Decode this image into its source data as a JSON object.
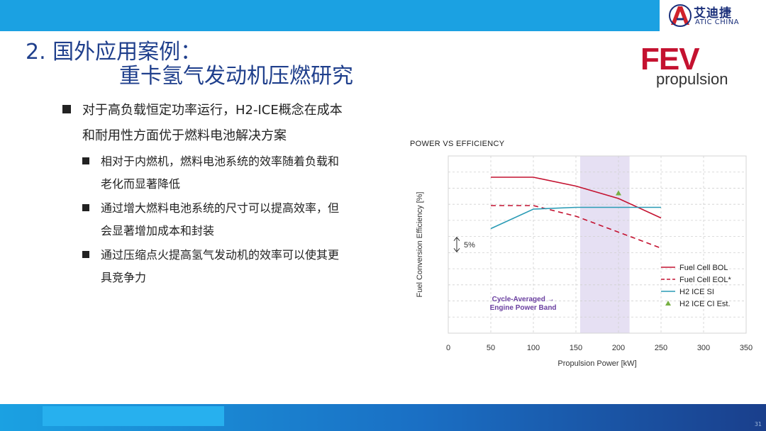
{
  "header": {
    "logo_cn": "艾迪捷",
    "logo_en": "ATIC CHINA"
  },
  "title": {
    "line1": "2. 国外应用案例：",
    "line2": "重卡氢气发动机压燃研究"
  },
  "fev": {
    "word": "FEV",
    "sub": "propulsion"
  },
  "bullets": {
    "main_line1": "对于高负载恒定功率运行，H2-ICE概念在成本",
    "main_line2": "和耐用性方面优于燃料电池解决方案",
    "sub": [
      {
        "line1": "相对于内燃机，燃料电池系统的效率随着负载和",
        "line2": "老化而显著降低"
      },
      {
        "line1": "通过增大燃料电池系统的尺寸可以提高效率，但",
        "line2": "会显著增加成本和封装"
      },
      {
        "line1": "通过压缩点火提高氢气发动机的效率可以使其更",
        "line2": "具竞争力"
      }
    ]
  },
  "chart_data": {
    "type": "line",
    "title": "POWER VS EFFICIENCY",
    "xlabel": "Propulsion Power [kW]",
    "ylabel": "Fuel Conversion Efficiency [%]",
    "xlim": [
      0,
      350
    ],
    "xticks": [
      "0",
      "50",
      "100",
      "150",
      "200",
      "250",
      "300",
      "350"
    ],
    "ylim": [
      0,
      100
    ],
    "grid": true,
    "y_scale_annotation": "5%",
    "band": {
      "x": [
        155,
        213
      ],
      "label_line1": "Cycle-Averaged",
      "label_arrow": "→",
      "label_line2": "Engine Power Band",
      "color": "#e6e0f3"
    },
    "legend_position": "lower-right",
    "series": [
      {
        "name": "Fuel Cell BOL",
        "color": "#c41230",
        "dash": false,
        "x": [
          50,
          100,
          150,
          200,
          250
        ],
        "y": [
          88,
          88,
          83,
          76,
          65
        ]
      },
      {
        "name": "Fuel Cell EOL*",
        "color": "#c41230",
        "dash": true,
        "x": [
          50,
          100,
          150,
          200,
          250
        ],
        "y": [
          72,
          72,
          66,
          57,
          48
        ]
      },
      {
        "name": "H2 ICE SI",
        "color": "#2a9bb5",
        "dash": false,
        "x": [
          50,
          100,
          150,
          200,
          250
        ],
        "y": [
          59,
          70,
          71,
          71,
          71
        ]
      }
    ],
    "points": [
      {
        "name": "H2 ICE CI Est.",
        "color": "#77b043",
        "x": 200,
        "y": 79
      }
    ]
  },
  "footer": {
    "page": "31"
  }
}
